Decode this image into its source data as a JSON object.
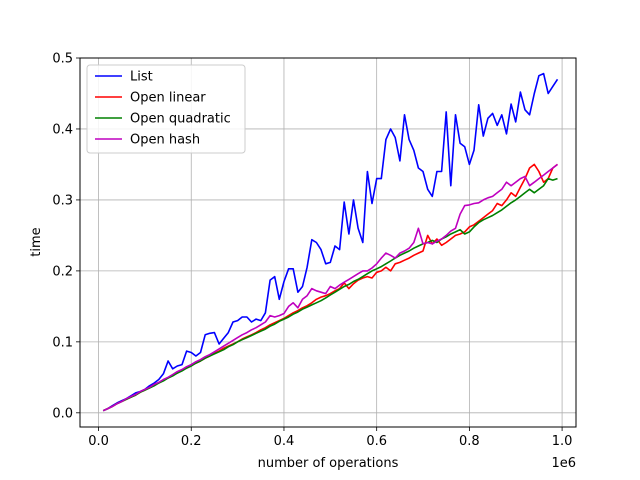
{
  "chart_data": {
    "type": "line",
    "title": "",
    "xlabel": "number of operations",
    "ylabel": "time",
    "x_offset_label": "1e6",
    "xlim": [
      -0.04,
      1.03
    ],
    "ylim": [
      -0.02,
      0.5
    ],
    "xticks": [
      0.0,
      0.2,
      0.4,
      0.6,
      0.8,
      1.0
    ],
    "xtick_labels": [
      "0.0",
      "0.2",
      "0.4",
      "0.6",
      "0.8",
      "1.0"
    ],
    "yticks": [
      0.0,
      0.1,
      0.2,
      0.3,
      0.4,
      0.5
    ],
    "ytick_labels": [
      "0.0",
      "0.1",
      "0.2",
      "0.3",
      "0.4",
      "0.5"
    ],
    "grid": true,
    "legend_position": "top-left",
    "x": [
      0.01,
      0.02,
      0.03,
      0.04,
      0.05,
      0.06,
      0.07,
      0.08,
      0.09,
      0.1,
      0.11,
      0.12,
      0.13,
      0.14,
      0.15,
      0.16,
      0.17,
      0.18,
      0.19,
      0.2,
      0.21,
      0.22,
      0.23,
      0.24,
      0.25,
      0.26,
      0.27,
      0.28,
      0.29,
      0.3,
      0.31,
      0.32,
      0.33,
      0.34,
      0.35,
      0.36,
      0.37,
      0.38,
      0.39,
      0.4,
      0.41,
      0.42,
      0.43,
      0.44,
      0.45,
      0.46,
      0.47,
      0.48,
      0.49,
      0.5,
      0.51,
      0.52,
      0.53,
      0.54,
      0.55,
      0.56,
      0.57,
      0.58,
      0.59,
      0.6,
      0.61,
      0.62,
      0.63,
      0.64,
      0.65,
      0.66,
      0.67,
      0.68,
      0.69,
      0.7,
      0.71,
      0.72,
      0.73,
      0.74,
      0.75,
      0.76,
      0.77,
      0.78,
      0.79,
      0.8,
      0.81,
      0.82,
      0.83,
      0.84,
      0.85,
      0.86,
      0.87,
      0.88,
      0.89,
      0.9,
      0.91,
      0.92,
      0.93,
      0.94,
      0.95,
      0.96,
      0.97,
      0.98,
      0.99
    ],
    "series": [
      {
        "name": "List",
        "color": "#0000ff",
        "values": [
          0.003,
          0.006,
          0.01,
          0.014,
          0.017,
          0.02,
          0.024,
          0.028,
          0.03,
          0.033,
          0.038,
          0.042,
          0.047,
          0.055,
          0.073,
          0.062,
          0.066,
          0.068,
          0.087,
          0.085,
          0.08,
          0.085,
          0.11,
          0.112,
          0.113,
          0.097,
          0.105,
          0.113,
          0.128,
          0.13,
          0.135,
          0.135,
          0.128,
          0.132,
          0.13,
          0.141,
          0.187,
          0.192,
          0.16,
          0.185,
          0.203,
          0.203,
          0.17,
          0.178,
          0.205,
          0.244,
          0.24,
          0.23,
          0.21,
          0.212,
          0.235,
          0.23,
          0.297,
          0.252,
          0.3,
          0.26,
          0.24,
          0.34,
          0.295,
          0.33,
          0.33,
          0.385,
          0.4,
          0.388,
          0.355,
          0.42,
          0.385,
          0.37,
          0.345,
          0.34,
          0.315,
          0.305,
          0.34,
          0.34,
          0.424,
          0.32,
          0.42,
          0.38,
          0.375,
          0.35,
          0.37,
          0.434,
          0.39,
          0.415,
          0.422,
          0.405,
          0.42,
          0.393,
          0.435,
          0.41,
          0.452,
          0.427,
          0.42,
          0.45,
          0.475,
          0.478,
          0.45,
          0.46,
          0.47
        ]
      },
      {
        "name": "Open linear",
        "color": "#ff0000",
        "values": [
          0.003,
          0.006,
          0.009,
          0.013,
          0.016,
          0.019,
          0.022,
          0.025,
          0.029,
          0.032,
          0.036,
          0.039,
          0.042,
          0.046,
          0.049,
          0.053,
          0.056,
          0.06,
          0.063,
          0.067,
          0.07,
          0.073,
          0.077,
          0.08,
          0.084,
          0.087,
          0.091,
          0.094,
          0.097,
          0.1,
          0.104,
          0.107,
          0.11,
          0.113,
          0.117,
          0.12,
          0.124,
          0.127,
          0.13,
          0.133,
          0.137,
          0.141,
          0.144,
          0.148,
          0.151,
          0.155,
          0.16,
          0.163,
          0.165,
          0.168,
          0.172,
          0.175,
          0.183,
          0.175,
          0.182,
          0.187,
          0.19,
          0.192,
          0.19,
          0.198,
          0.2,
          0.205,
          0.2,
          0.21,
          0.212,
          0.215,
          0.218,
          0.222,
          0.225,
          0.228,
          0.25,
          0.238,
          0.245,
          0.236,
          0.24,
          0.245,
          0.25,
          0.252,
          0.255,
          0.262,
          0.265,
          0.27,
          0.275,
          0.28,
          0.285,
          0.295,
          0.292,
          0.3,
          0.31,
          0.305,
          0.318,
          0.33,
          0.345,
          0.35,
          0.34,
          0.325,
          0.33,
          0.345,
          0.35
        ]
      },
      {
        "name": "Open quadratic",
        "color": "#008000",
        "values": [
          0.003,
          0.006,
          0.009,
          0.013,
          0.016,
          0.019,
          0.022,
          0.025,
          0.029,
          0.032,
          0.035,
          0.038,
          0.042,
          0.045,
          0.049,
          0.052,
          0.056,
          0.059,
          0.063,
          0.066,
          0.07,
          0.073,
          0.077,
          0.08,
          0.083,
          0.086,
          0.089,
          0.093,
          0.096,
          0.1,
          0.103,
          0.106,
          0.109,
          0.112,
          0.115,
          0.118,
          0.122,
          0.125,
          0.129,
          0.132,
          0.135,
          0.139,
          0.142,
          0.146,
          0.149,
          0.152,
          0.155,
          0.158,
          0.162,
          0.166,
          0.17,
          0.174,
          0.178,
          0.181,
          0.185,
          0.188,
          0.192,
          0.196,
          0.2,
          0.203,
          0.206,
          0.21,
          0.214,
          0.218,
          0.222,
          0.225,
          0.228,
          0.232,
          0.235,
          0.238,
          0.24,
          0.243,
          0.24,
          0.245,
          0.248,
          0.252,
          0.255,
          0.258,
          0.252,
          0.255,
          0.262,
          0.268,
          0.272,
          0.275,
          0.278,
          0.282,
          0.286,
          0.291,
          0.296,
          0.3,
          0.305,
          0.31,
          0.315,
          0.31,
          0.315,
          0.32,
          0.33,
          0.328,
          0.33
        ]
      },
      {
        "name": "Open hash",
        "color": "#bf00bf",
        "values": [
          0.003,
          0.006,
          0.009,
          0.013,
          0.016,
          0.02,
          0.023,
          0.026,
          0.03,
          0.033,
          0.036,
          0.04,
          0.043,
          0.047,
          0.05,
          0.054,
          0.058,
          0.061,
          0.065,
          0.068,
          0.072,
          0.075,
          0.079,
          0.082,
          0.086,
          0.09,
          0.094,
          0.098,
          0.102,
          0.106,
          0.11,
          0.113,
          0.117,
          0.12,
          0.124,
          0.128,
          0.137,
          0.135,
          0.137,
          0.14,
          0.15,
          0.155,
          0.148,
          0.16,
          0.165,
          0.175,
          0.172,
          0.17,
          0.168,
          0.178,
          0.175,
          0.18,
          0.184,
          0.188,
          0.192,
          0.196,
          0.2,
          0.2,
          0.204,
          0.21,
          0.218,
          0.225,
          0.222,
          0.218,
          0.225,
          0.228,
          0.232,
          0.24,
          0.26,
          0.238,
          0.24,
          0.238,
          0.242,
          0.245,
          0.25,
          0.256,
          0.26,
          0.28,
          0.292,
          0.293,
          0.295,
          0.296,
          0.3,
          0.303,
          0.305,
          0.31,
          0.315,
          0.325,
          0.32,
          0.325,
          0.33,
          0.333,
          0.32,
          0.325,
          0.33,
          0.335,
          0.34,
          0.345,
          0.35
        ]
      }
    ]
  }
}
